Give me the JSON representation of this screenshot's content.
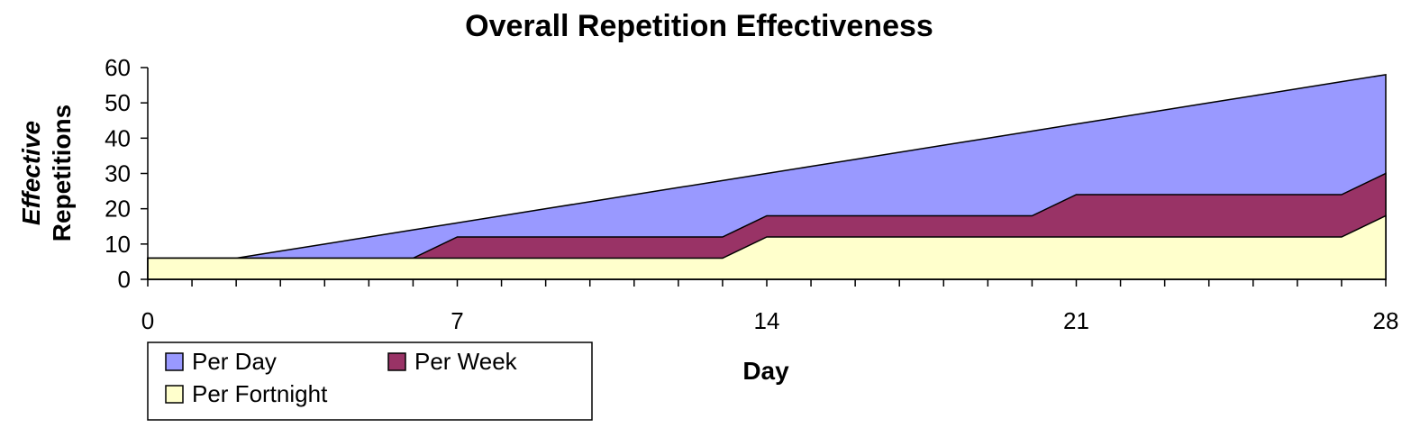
{
  "chart_data": {
    "type": "area",
    "title": "Overall Repetition Effectiveness",
    "xlabel": "Day",
    "ylabel_line1": "Effective",
    "ylabel_line2": "Repetitions",
    "x_ticks": [
      0,
      7,
      14,
      21,
      28
    ],
    "y_ticks": [
      0,
      10,
      20,
      30,
      40,
      50,
      60
    ],
    "xlim": [
      0,
      28
    ],
    "ylim": [
      0,
      60
    ],
    "stacked": false,
    "legend_position": "bottom-left",
    "series": [
      {
        "name": "Per Day",
        "color": "#9999ff",
        "x": [
          0,
          2,
          3,
          4,
          5,
          6,
          7,
          8,
          9,
          10,
          11,
          12,
          13,
          14,
          15,
          16,
          17,
          18,
          19,
          20,
          21,
          22,
          23,
          24,
          25,
          26,
          27,
          28
        ],
        "values": [
          6,
          6,
          8,
          10,
          12,
          14,
          16,
          18,
          20,
          22,
          24,
          26,
          28,
          30,
          32,
          34,
          36,
          38,
          40,
          42,
          44,
          46,
          48,
          50,
          52,
          54,
          56,
          58
        ]
      },
      {
        "name": "Per Week",
        "color": "#993366",
        "x": [
          0,
          6,
          7,
          13,
          14,
          20,
          21,
          27,
          28
        ],
        "values": [
          6,
          6,
          12,
          12,
          18,
          18,
          24,
          24,
          30
        ]
      },
      {
        "name": "Per Fortnight",
        "color": "#ffffcc",
        "x": [
          0,
          13,
          14,
          27,
          28
        ],
        "values": [
          6,
          6,
          12,
          12,
          18
        ]
      }
    ]
  }
}
